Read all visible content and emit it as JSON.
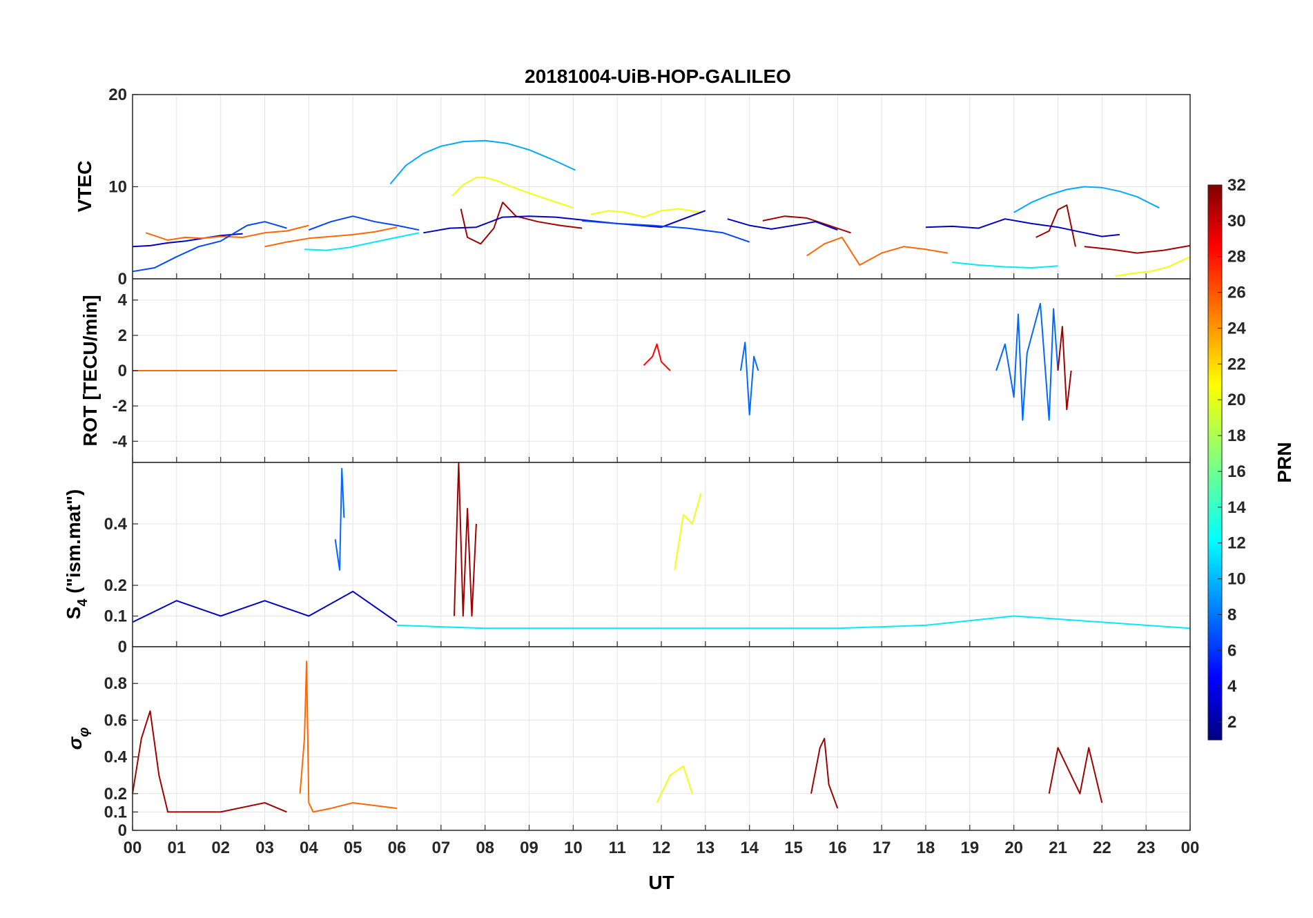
{
  "chart_data": {
    "title": "20181004-UiB-HOP-GALILEO",
    "type": "line",
    "xlabel": "UT",
    "x_tick_labels": [
      "00",
      "01",
      "02",
      "03",
      "04",
      "05",
      "06",
      "07",
      "08",
      "09",
      "10",
      "11",
      "12",
      "13",
      "14",
      "15",
      "16",
      "17",
      "18",
      "19",
      "20",
      "21",
      "22",
      "23",
      "00"
    ],
    "xlim": [
      0,
      24
    ],
    "grid": true,
    "colorbar": {
      "label": "PRN",
      "range": [
        1,
        32
      ],
      "colormap": "jet",
      "ticks": [
        2,
        4,
        6,
        8,
        10,
        12,
        14,
        16,
        18,
        20,
        22,
        24,
        26,
        28,
        30,
        32
      ],
      "tick_labels": [
        "2",
        "4",
        "6",
        "8",
        "10",
        "12",
        "14",
        "16",
        "18",
        "20",
        "22",
        "24",
        "26",
        "28",
        "30",
        "32"
      ]
    },
    "panels": [
      {
        "name": "vtec",
        "ylabel": "VTEC",
        "ylim": [
          0,
          20
        ],
        "y_ticks": [
          0,
          10,
          20
        ],
        "y_tick_labels": [
          "0",
          "10",
          "20"
        ],
        "series": [
          {
            "prn": 10,
            "x": [
              5.85,
              6.2,
              6.6,
              7.0,
              7.5,
              8.0,
              8.5,
              9.0,
              9.5,
              10.05
            ],
            "y": [
              10.3,
              12.3,
              13.6,
              14.4,
              14.9,
              15.0,
              14.7,
              14.0,
              13.0,
              11.8
            ]
          },
          {
            "prn": 10,
            "x": [
              20.0,
              20.4,
              20.8,
              21.2,
              21.6,
              22.0,
              22.4,
              22.8,
              23.3
            ],
            "y": [
              7.2,
              8.3,
              9.1,
              9.7,
              10.0,
              9.9,
              9.5,
              8.9,
              7.7
            ]
          },
          {
            "prn": 20,
            "x": [
              7.25,
              7.5,
              7.8,
              8.0,
              8.3,
              8.6,
              9.0,
              9.5,
              10.0
            ],
            "y": [
              9.0,
              10.2,
              11.0,
              11.0,
              10.6,
              10.0,
              9.3,
              8.5,
              7.7
            ]
          },
          {
            "prn": 20,
            "x": [
              10.4,
              10.8,
              11.2,
              11.6,
              12.0,
              12.4,
              12.9
            ],
            "y": [
              7.0,
              7.4,
              7.2,
              6.7,
              7.4,
              7.6,
              7.2
            ]
          },
          {
            "prn": 20,
            "x": [
              22.3,
              22.7,
              23.1,
              23.5,
              24.0
            ],
            "y": [
              0.3,
              0.6,
              0.8,
              1.3,
              2.4
            ]
          },
          {
            "prn": 31,
            "x": [
              7.45,
              7.6,
              7.9,
              8.2,
              8.4,
              8.7,
              9.2,
              9.7,
              10.2
            ],
            "y": [
              7.6,
              4.5,
              3.8,
              5.5,
              8.3,
              6.8,
              6.2,
              5.8,
              5.5
            ]
          },
          {
            "prn": 31,
            "x": [
              14.3,
              14.8,
              15.3,
              15.8,
              16.3
            ],
            "y": [
              6.3,
              6.8,
              6.6,
              5.8,
              5.0
            ]
          },
          {
            "prn": 31,
            "x": [
              20.5,
              20.8,
              21.0,
              21.2,
              21.4
            ],
            "y": [
              4.5,
              5.2,
              7.5,
              8.0,
              3.5
            ]
          },
          {
            "prn": 31,
            "x": [
              21.6,
              22.2,
              22.8,
              23.4,
              24.0
            ],
            "y": [
              3.5,
              3.2,
              2.8,
              3.1,
              3.6
            ]
          },
          {
            "prn": 3,
            "x": [
              0.0,
              0.4,
              0.8,
              1.2,
              1.6,
              2.0,
              2.5
            ],
            "y": [
              3.5,
              3.6,
              3.9,
              4.1,
              4.4,
              4.7,
              4.9
            ]
          },
          {
            "prn": 3,
            "x": [
              6.6,
              7.2,
              7.8,
              8.4,
              9.0,
              9.6,
              10.2,
              11.0,
              12.0,
              13.0
            ],
            "y": [
              5.0,
              5.5,
              5.6,
              6.7,
              6.8,
              6.7,
              6.4,
              6.0,
              5.6,
              7.4
            ]
          },
          {
            "prn": 3,
            "x": [
              13.5,
              14.0,
              14.5,
              15.0,
              15.5,
              16.0
            ],
            "y": [
              6.5,
              5.8,
              5.4,
              5.8,
              6.2,
              5.3
            ]
          },
          {
            "prn": 3,
            "x": [
              18.0,
              18.6,
              19.2,
              19.8,
              20.4,
              21.0,
              21.6,
              22.0,
              22.4
            ],
            "y": [
              5.6,
              5.7,
              5.5,
              6.5,
              6.0,
              5.6,
              5.0,
              4.6,
              4.8
            ]
          },
          {
            "prn": 25,
            "x": [
              0.3,
              0.8,
              1.2,
              1.6,
              2.0,
              2.5,
              3.0,
              3.5,
              4.0
            ],
            "y": [
              5.0,
              4.2,
              4.5,
              4.4,
              4.6,
              4.5,
              5.0,
              5.2,
              5.8
            ]
          },
          {
            "prn": 25,
            "x": [
              3.0,
              3.5,
              4.0,
              4.5,
              5.0,
              5.5,
              6.0
            ],
            "y": [
              3.5,
              4.0,
              4.4,
              4.6,
              4.8,
              5.1,
              5.6
            ]
          },
          {
            "prn": 25,
            "x": [
              15.3,
              15.7,
              16.1,
              16.5,
              17.0,
              17.5,
              18.0,
              18.5
            ],
            "y": [
              2.5,
              3.8,
              4.5,
              1.5,
              2.8,
              3.5,
              3.2,
              2.8
            ]
          },
          {
            "prn": 7,
            "x": [
              0.0,
              0.5,
              1.0,
              1.5,
              2.0,
              2.6,
              3.0,
              3.5
            ],
            "y": [
              0.8,
              1.2,
              2.4,
              3.5,
              4.1,
              5.8,
              6.2,
              5.5
            ]
          },
          {
            "prn": 7,
            "x": [
              4.0,
              4.5,
              5.0,
              5.5,
              6.0,
              6.5
            ],
            "y": [
              5.3,
              6.2,
              6.8,
              6.2,
              5.8,
              5.3
            ]
          },
          {
            "prn": 7,
            "x": [
              10.2,
              11.0,
              11.8,
              12.6,
              13.4,
              14.0
            ],
            "y": [
              6.3,
              6.0,
              5.8,
              5.5,
              5.0,
              4.0
            ]
          },
          {
            "prn": 12,
            "x": [
              3.9,
              4.4,
              4.9,
              5.4,
              6.0,
              6.5
            ],
            "y": [
              3.2,
              3.1,
              3.4,
              3.9,
              4.5,
              5.0
            ]
          },
          {
            "prn": 12,
            "x": [
              18.6,
              19.2,
              19.8,
              20.4,
              21.0
            ],
            "y": [
              1.8,
              1.5,
              1.3,
              1.2,
              1.4
            ]
          }
        ]
      },
      {
        "name": "rot",
        "ylabel": "ROT [TECU/min]",
        "ylim": [
          -5.2,
          5.2
        ],
        "y_ticks": [
          -4,
          -2,
          0,
          2,
          4
        ],
        "y_tick_labels": [
          "-4",
          "-2",
          "0",
          "2",
          "4"
        ],
        "series": [
          {
            "prn": 25,
            "x": [
              0.0,
              1.0,
              2.0,
              3.0,
              4.0,
              5.0,
              6.0
            ],
            "y": [
              0,
              0,
              0,
              0,
              0,
              0,
              0
            ]
          },
          {
            "prn": 28,
            "x": [
              11.6,
              11.8,
              11.9,
              12.0,
              12.2
            ],
            "y": [
              0.3,
              0.8,
              1.5,
              0.5,
              0.0
            ]
          },
          {
            "prn": 8,
            "x": [
              13.8,
              13.9,
              14.0,
              14.1,
              14.2
            ],
            "y": [
              0.0,
              1.6,
              -2.5,
              0.8,
              0.0
            ]
          },
          {
            "prn": 8,
            "x": [
              19.6,
              19.8,
              20.0,
              20.1,
              20.2,
              20.3,
              20.6,
              20.8,
              20.9,
              21.0
            ],
            "y": [
              0.0,
              1.5,
              -1.5,
              3.2,
              -2.8,
              1.0,
              3.8,
              -2.8,
              3.5,
              0.0
            ]
          },
          {
            "prn": 31,
            "x": [
              21.0,
              21.1,
              21.2,
              21.3
            ],
            "y": [
              0.0,
              2.5,
              -2.2,
              0.0
            ]
          }
        ]
      },
      {
        "name": "s4",
        "ylabel": "S4 (\"ism.mat\")",
        "ylim": [
          0,
          0.6
        ],
        "y_ticks": [
          0,
          0.1,
          0.2,
          0.4
        ],
        "y_tick_labels": [
          "0",
          "0.1",
          "0.2",
          "0.4"
        ],
        "series": [
          {
            "prn": 31,
            "x": [
              7.3,
              7.4,
              7.5,
              7.6,
              7.7,
              7.8
            ],
            "y": [
              0.1,
              0.6,
              0.1,
              0.45,
              0.1,
              0.4
            ]
          },
          {
            "prn": 8,
            "x": [
              4.6,
              4.7,
              4.75,
              4.8
            ],
            "y": [
              0.35,
              0.25,
              0.58,
              0.42
            ]
          },
          {
            "prn": 20,
            "x": [
              12.3,
              12.5,
              12.7,
              12.9
            ],
            "y": [
              0.25,
              0.43,
              0.4,
              0.5
            ]
          },
          {
            "prn": 3,
            "x": [
              0.0,
              1.0,
              2.0,
              3.0,
              4.0,
              5.0,
              6.0
            ],
            "y": [
              0.08,
              0.15,
              0.1,
              0.15,
              0.1,
              0.18,
              0.08
            ]
          },
          {
            "prn": 12,
            "x": [
              6.0,
              8.0,
              10.0,
              12.0,
              14.0,
              16.0,
              18.0,
              20.0,
              22.0,
              24.0
            ],
            "y": [
              0.07,
              0.06,
              0.06,
              0.06,
              0.06,
              0.06,
              0.07,
              0.1,
              0.08,
              0.06
            ]
          }
        ]
      },
      {
        "name": "sigma-phi",
        "ylabel": "σφ",
        "ylim": [
          0,
          1
        ],
        "y_ticks": [
          0,
          0.1,
          0.2,
          0.4,
          0.6,
          0.8
        ],
        "y_tick_labels": [
          "0",
          "0.1",
          "0.2",
          "0.4",
          "0.6",
          "0.8"
        ],
        "series": [
          {
            "prn": 31,
            "x": [
              0.0,
              0.2,
              0.4,
              0.6,
              0.8,
              1.0,
              2.0,
              3.0,
              3.5
            ],
            "y": [
              0.2,
              0.5,
              0.65,
              0.3,
              0.1,
              0.1,
              0.1,
              0.15,
              0.1
            ]
          },
          {
            "prn": 25,
            "x": [
              3.8,
              3.9,
              3.95,
              4.0,
              4.1,
              4.5,
              5.0,
              6.0
            ],
            "y": [
              0.2,
              0.5,
              0.92,
              0.15,
              0.1,
              0.12,
              0.15,
              0.12
            ]
          },
          {
            "prn": 20,
            "x": [
              11.9,
              12.2,
              12.5,
              12.7
            ],
            "y": [
              0.15,
              0.3,
              0.35,
              0.2
            ]
          },
          {
            "prn": 31,
            "x": [
              15.4,
              15.6,
              15.7,
              15.8,
              16.0
            ],
            "y": [
              0.2,
              0.45,
              0.5,
              0.25,
              0.12
            ]
          },
          {
            "prn": 31,
            "x": [
              20.8,
              21.0,
              21.5,
              21.7,
              22.0
            ],
            "y": [
              0.2,
              0.45,
              0.2,
              0.45,
              0.15
            ]
          }
        ]
      }
    ]
  }
}
